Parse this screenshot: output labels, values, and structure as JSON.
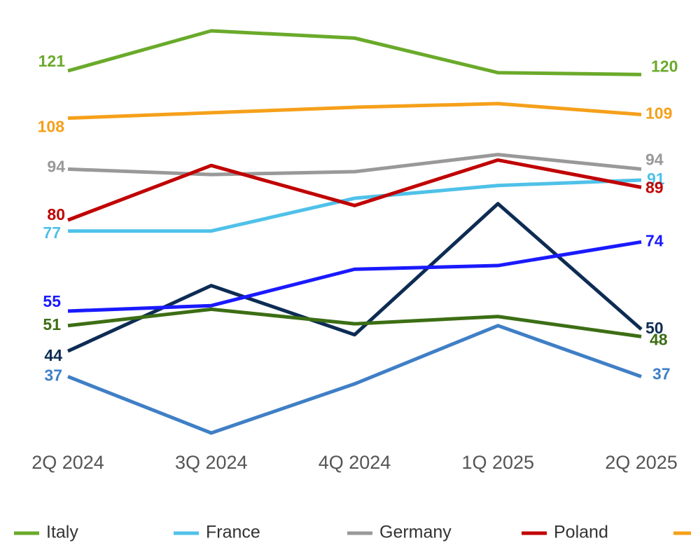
{
  "chart_data": {
    "type": "line",
    "x": [
      "2Q 2024",
      "3Q 2024",
      "4Q 2024",
      "1Q 2025",
      "2Q 2025"
    ],
    "series": [
      {
        "name": "Italy",
        "color": "#6aaa2a",
        "values": [
          121,
          132,
          130,
          120.5,
          120
        ]
      },
      {
        "name": "France",
        "color": "#4fc1e9",
        "values": [
          77,
          77,
          86,
          89.5,
          91
        ]
      },
      {
        "name": "Germany",
        "color": "#999999",
        "values": [
          94,
          92.5,
          93.3,
          98,
          94
        ]
      },
      {
        "name": "Poland",
        "color": "#c00000",
        "values": [
          80,
          95,
          84,
          96.5,
          89
        ]
      },
      {
        "color": "#f5a01a",
        "values": [
          108,
          109.5,
          111,
          112,
          109
        ]
      },
      {
        "color": "#0d2c54",
        "values": [
          44,
          62,
          48.5,
          84.5,
          50
        ]
      },
      {
        "color": "#1a1aff",
        "values": [
          55,
          56.5,
          66.5,
          67.5,
          74
        ]
      },
      {
        "color": "#3c6e14",
        "values": [
          51,
          55.5,
          51.5,
          53.5,
          48
        ]
      },
      {
        "color": "#3f7fc6",
        "values": [
          37,
          21.5,
          35,
          51,
          37
        ]
      }
    ]
  }
}
